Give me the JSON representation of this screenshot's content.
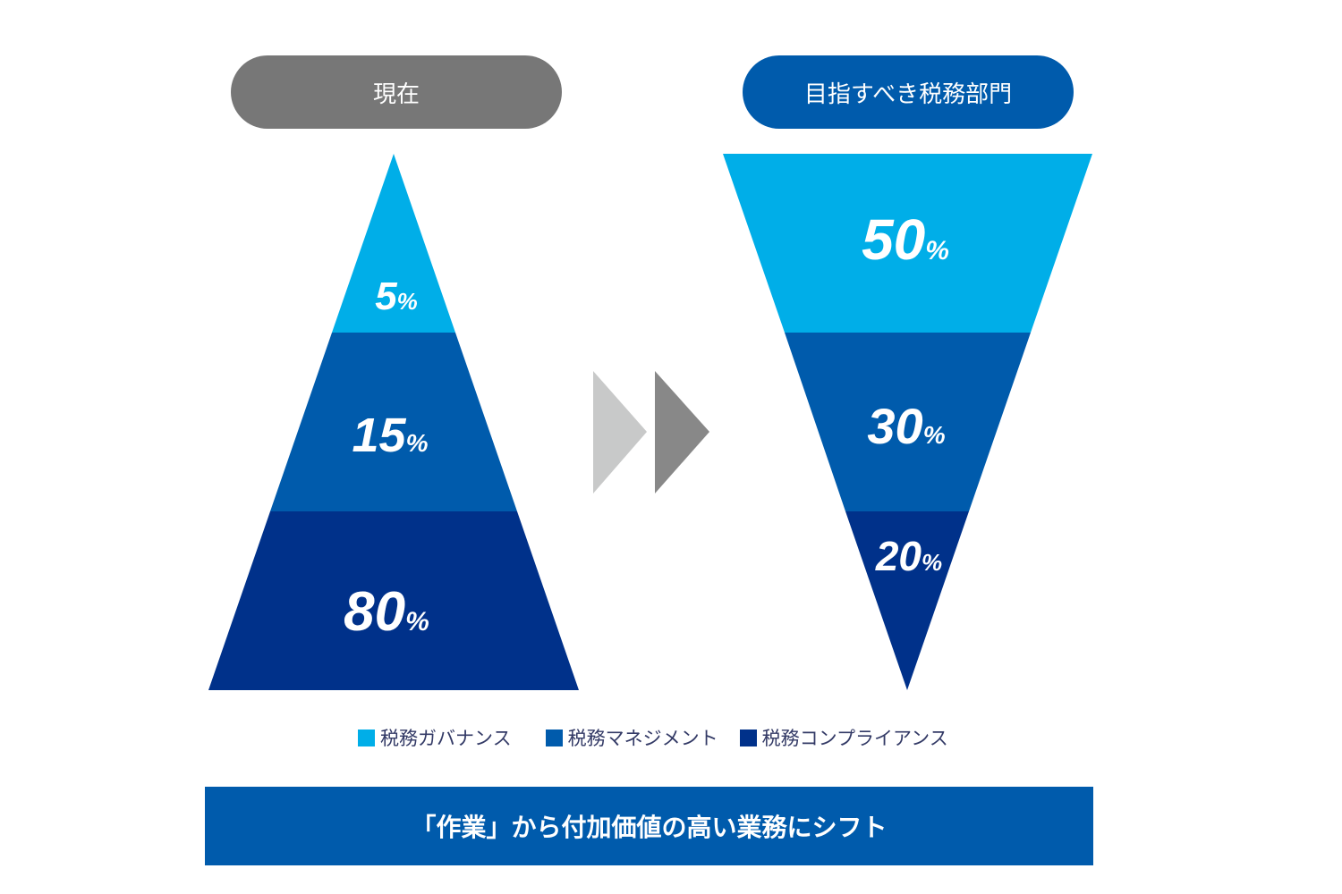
{
  "headers": {
    "current": "現在",
    "target": "目指すべき税務部門"
  },
  "colors": {
    "governance": "#00AEE8",
    "management": "#005BAC",
    "compliance": "#00318A",
    "current_pill": "#777777",
    "target_pill": "#005BAC"
  },
  "current": {
    "governance": {
      "value": "5",
      "unit": "%"
    },
    "management": {
      "value": "15",
      "unit": "%"
    },
    "compliance": {
      "value": "80",
      "unit": "%"
    }
  },
  "target": {
    "governance": {
      "value": "50",
      "unit": "%"
    },
    "management": {
      "value": "30",
      "unit": "%"
    },
    "compliance": {
      "value": "20",
      "unit": "%"
    }
  },
  "legend": {
    "governance": "税務ガバナンス",
    "management": "税務マネジメント",
    "compliance": "税務コンプライアンス"
  },
  "banner": "「作業」から付加価値の高い業務にシフト"
}
